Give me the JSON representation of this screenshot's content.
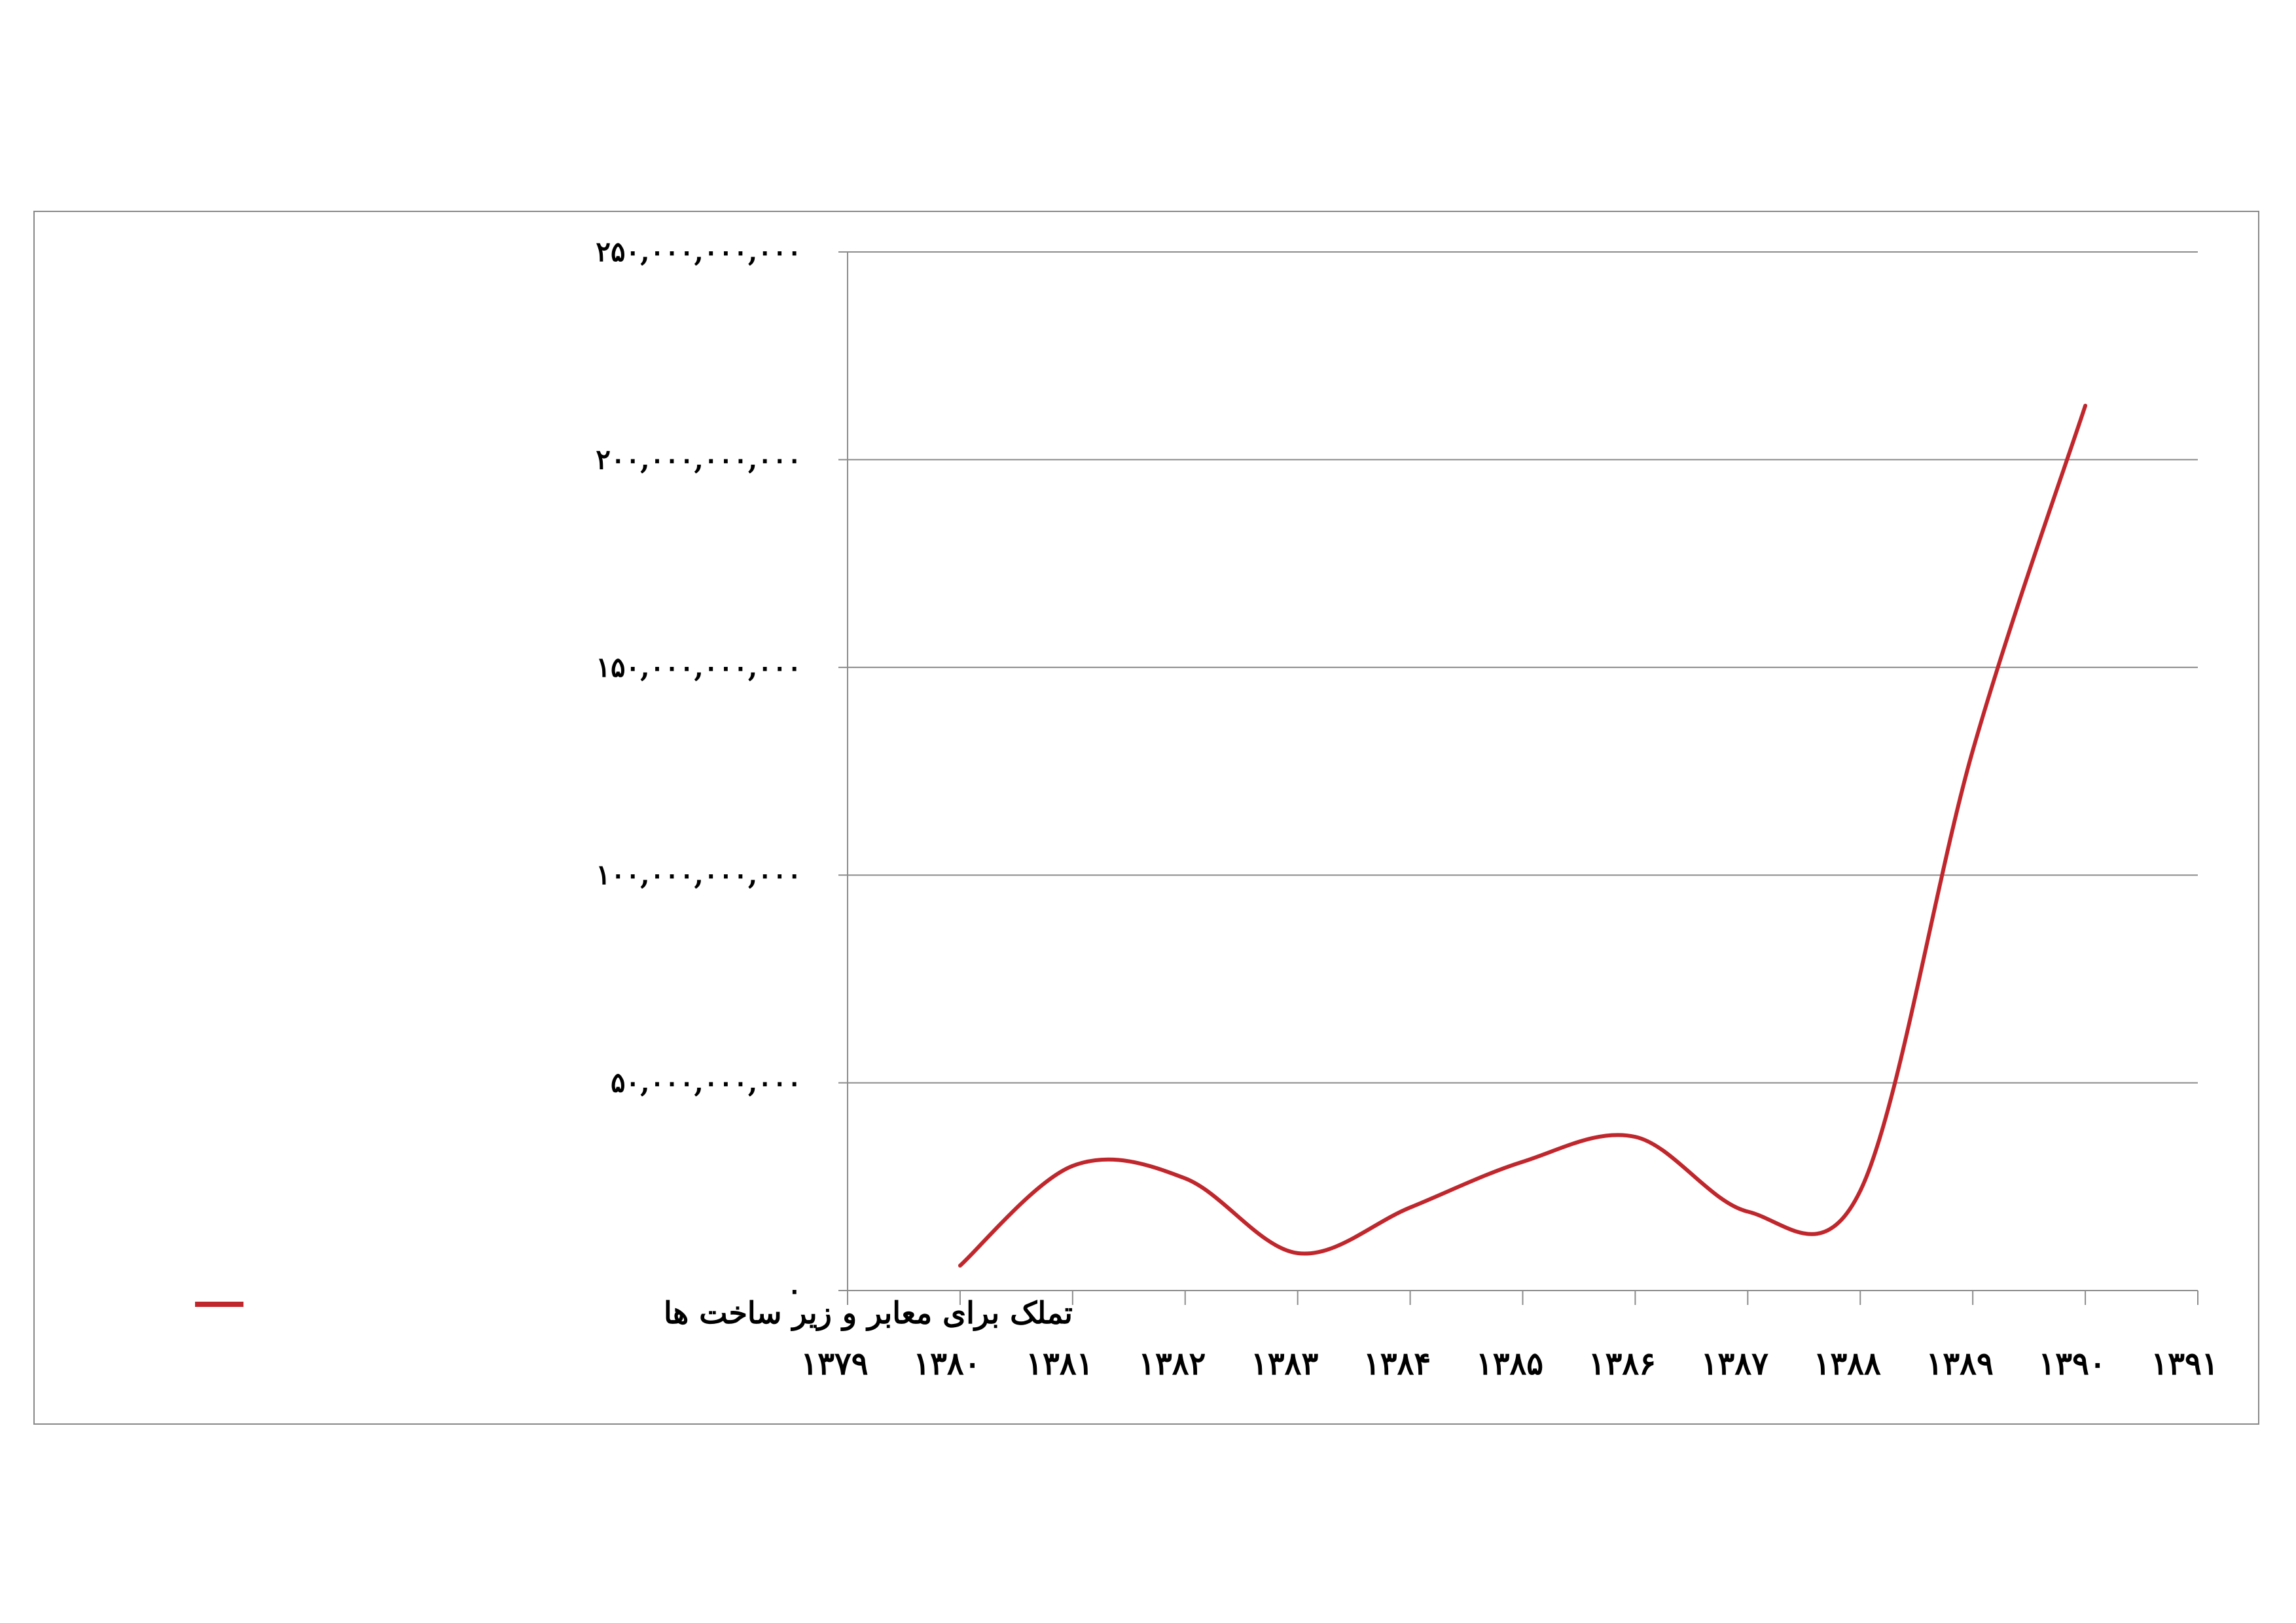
{
  "chart_data": {
    "type": "line",
    "title": "",
    "xlabel": "",
    "ylabel": "",
    "categories": [
      "۱۳۷۹",
      "۱۳۸۰",
      "۱۳۸۱",
      "۱۳۸۲",
      "۱۳۸۳",
      "۱۳۸۴",
      "۱۳۸۵",
      "۱۳۸۶",
      "۱۳۸۷",
      "۱۳۸۸",
      "۱۳۸۹",
      "۱۳۹۰",
      "۱۳۹۱"
    ],
    "x": [
      1379,
      1380,
      1381,
      1382,
      1383,
      1384,
      1385,
      1386,
      1387,
      1388,
      1389,
      1390,
      1391
    ],
    "ylim": [
      0,
      250000000000
    ],
    "yticks": [
      0,
      50000000000,
      100000000000,
      150000000000,
      200000000000,
      250000000000
    ],
    "ytick_labels": [
      "۰",
      "۵۰,۰۰۰,۰۰۰,۰۰۰",
      "۱۰۰,۰۰۰,۰۰۰,۰۰۰",
      "۱۵۰,۰۰۰,۰۰۰,۰۰۰",
      "۲۰۰,۰۰۰,۰۰۰,۰۰۰",
      "۲۵۰,۰۰۰,۰۰۰,۰۰۰"
    ],
    "grid": true,
    "legend": "left",
    "series": [
      {
        "name": "تملک برای معابر و زیر ساخت ها",
        "color": "#C0272D",
        "x": [
          1380,
          1381,
          1382,
          1383,
          1384,
          1385,
          1386,
          1387,
          1388,
          1389,
          1390
        ],
        "values": [
          6000000000,
          30000000000,
          27000000000,
          9000000000,
          20000000000,
          31000000000,
          37000000000,
          19000000000,
          24000000000,
          130000000000,
          213000000000
        ]
      }
    ]
  }
}
